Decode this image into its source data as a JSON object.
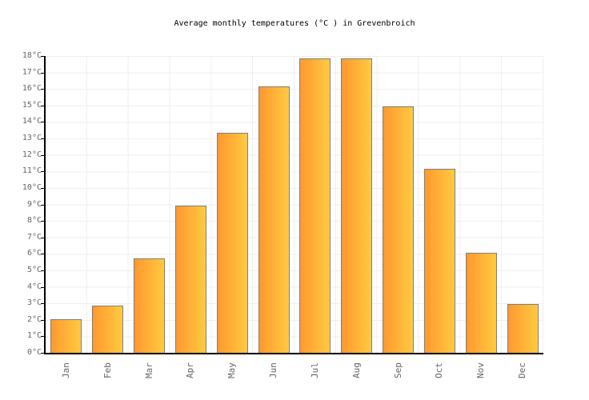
{
  "title": "Average monthly temperatures (°C ) in Grevenbroich",
  "chart_data": {
    "type": "bar",
    "title": "Average monthly temperatures (°C ) in Grevenbroich",
    "categories": [
      "Jan",
      "Feb",
      "Mar",
      "Apr",
      "May",
      "Jun",
      "Jul",
      "Aug",
      "Sep",
      "Oct",
      "Nov",
      "Dec"
    ],
    "values": [
      2.0,
      2.8,
      5.7,
      8.9,
      13.3,
      16.1,
      17.8,
      17.8,
      14.9,
      11.1,
      6.0,
      2.9
    ],
    "xlabel": "",
    "ylabel": "",
    "ylim": [
      0,
      18
    ],
    "ytick_step": 1,
    "ytick_labels": [
      "0°C",
      "1°C",
      "2°C",
      "3°C",
      "4°C",
      "5°C",
      "6°C",
      "7°C",
      "8°C",
      "9°C",
      "10°C",
      "11°C",
      "12°C",
      "13°C",
      "14°C",
      "15°C",
      "16°C",
      "17°C",
      "18°C"
    ],
    "grid": true,
    "legend": false,
    "colors": {
      "bar_gradient_left": "#FF9830",
      "bar_gradient_right": "#FFCA40",
      "bar_border": "#7F7F7F",
      "gridline": "#EFEFEF",
      "axis": "#000000",
      "tick_label": "#666666",
      "title": "#000000",
      "background": "#FFFFFF"
    }
  }
}
